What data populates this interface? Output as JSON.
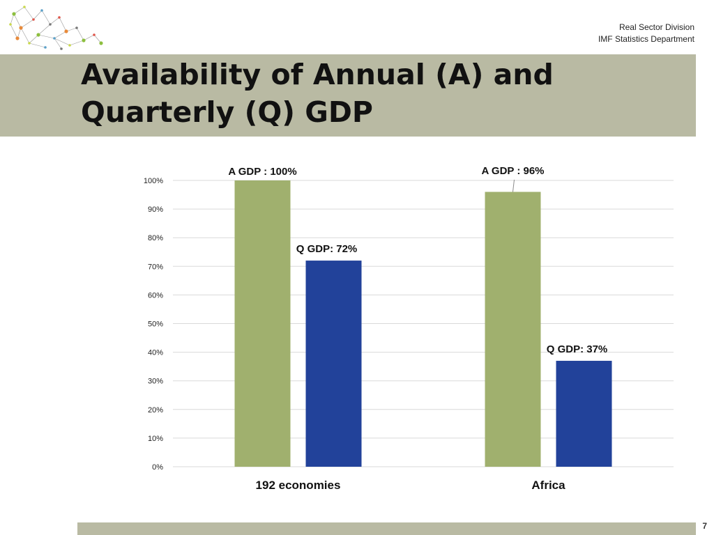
{
  "header": {
    "division": "Real Sector Division",
    "department": "IMF Statistics Department"
  },
  "title": {
    "line1": "Availability of Annual (A) and",
    "line2": "Quarterly (Q) GDP"
  },
  "footer": {
    "page_number": "7"
  },
  "colors": {
    "annual": "#a0b06e",
    "quarterly": "#22429a",
    "band": "#b9baa3",
    "grid": "#d9d9d9"
  },
  "chart_data": {
    "type": "bar",
    "categories": [
      "192 economies",
      "Africa"
    ],
    "series": [
      {
        "key": "annual",
        "values": [
          100,
          96
        ],
        "labels": [
          "A GDP : 100%",
          "A GDP : 96%"
        ]
      },
      {
        "key": "quarterly",
        "values": [
          72,
          37
        ],
        "labels": [
          "Q GDP: 72%",
          "Q GDP: 37%"
        ]
      }
    ],
    "ylim": [
      0,
      100
    ],
    "yticks": [
      "0%",
      "10%",
      "20%",
      "30%",
      "40%",
      "50%",
      "60%",
      "70%",
      "80%",
      "90%",
      "100%"
    ],
    "grid": true,
    "legend": "none"
  }
}
